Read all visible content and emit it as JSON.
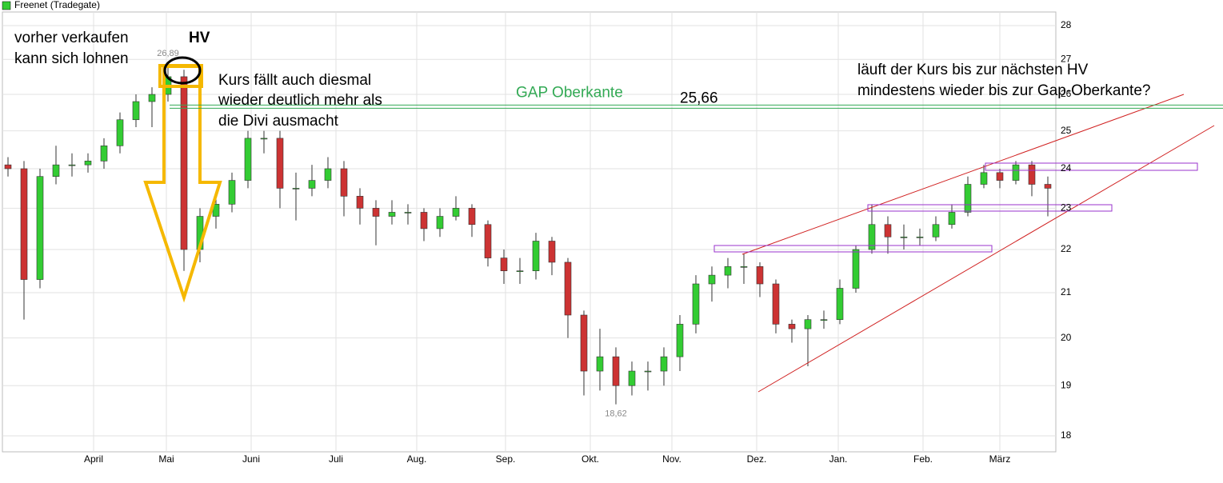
{
  "chart_data": {
    "type": "candlestick",
    "log_y": true,
    "grid": true,
    "series": [
      {
        "name": "Freenet (Tradegate)",
        "color": "#33cc33",
        "color_down": "#cc3333",
        "open": [
          24.1,
          24.0,
          21.3,
          23.8,
          24.1,
          24.1,
          24.2,
          24.6,
          25.3,
          25.8,
          26.0,
          26.5,
          22.0,
          22.8,
          23.1,
          23.7,
          24.8,
          24.8,
          23.5,
          23.5,
          23.7,
          24.0,
          23.3,
          23.0,
          22.8,
          22.9,
          22.9,
          22.5,
          22.8,
          23.0,
          22.6,
          21.8,
          21.5,
          21.5,
          22.2,
          21.7,
          20.5,
          19.3,
          19.6,
          19.0,
          19.3,
          19.3,
          19.6,
          20.3,
          21.2,
          21.4,
          21.6,
          21.6,
          21.2,
          20.3,
          20.2,
          20.4,
          20.4,
          21.1,
          22.0,
          22.6,
          22.3,
          22.3,
          22.3,
          22.6,
          22.9,
          23.6,
          23.9,
          23.7,
          24.1,
          23.6
        ],
        "high": [
          24.3,
          24.2,
          24.0,
          24.6,
          24.4,
          24.4,
          24.8,
          25.5,
          26.0,
          26.2,
          26.89,
          26.7,
          23.0,
          23.4,
          23.9,
          25.0,
          25.0,
          25.0,
          23.9,
          24.1,
          24.3,
          24.2,
          23.5,
          23.2,
          23.2,
          23.1,
          23.0,
          23.0,
          23.3,
          23.1,
          22.7,
          22.0,
          21.8,
          22.4,
          22.3,
          21.8,
          20.6,
          20.2,
          19.8,
          19.5,
          19.5,
          19.8,
          20.5,
          21.4,
          21.6,
          21.8,
          21.9,
          21.7,
          21.3,
          20.4,
          20.5,
          20.6,
          21.3,
          22.1,
          23.1,
          22.8,
          22.6,
          22.5,
          22.8,
          23.1,
          23.8,
          24.1,
          24.0,
          24.2,
          24.2,
          23.8
        ],
        "low": [
          23.8,
          20.4,
          21.1,
          23.6,
          23.8,
          23.9,
          24.0,
          24.4,
          25.1,
          25.1,
          25.8,
          21.5,
          21.7,
          22.5,
          22.9,
          23.5,
          24.4,
          23.0,
          22.7,
          23.3,
          23.5,
          22.8,
          22.6,
          22.1,
          22.6,
          22.6,
          22.2,
          22.3,
          22.7,
          22.3,
          21.6,
          21.2,
          21.2,
          21.3,
          21.4,
          20.0,
          18.8,
          18.9,
          18.62,
          18.8,
          18.9,
          19.0,
          19.3,
          20.1,
          20.8,
          21.1,
          21.2,
          20.9,
          20.1,
          19.9,
          19.4,
          20.2,
          20.3,
          21.0,
          21.9,
          21.9,
          22.0,
          22.1,
          22.2,
          22.5,
          22.8,
          23.5,
          23.5,
          23.6,
          23.3,
          22.8
        ],
        "close": [
          24.0,
          21.3,
          23.8,
          24.1,
          24.1,
          24.2,
          24.6,
          25.3,
          25.8,
          26.0,
          26.5,
          22.0,
          22.8,
          23.1,
          23.7,
          24.8,
          24.8,
          23.5,
          23.5,
          23.7,
          24.0,
          23.3,
          23.0,
          22.8,
          22.9,
          22.9,
          22.5,
          22.8,
          23.0,
          22.6,
          21.8,
          21.5,
          21.5,
          22.2,
          21.7,
          20.5,
          19.3,
          19.6,
          19.0,
          19.3,
          19.3,
          19.6,
          20.3,
          21.2,
          21.4,
          21.6,
          21.6,
          21.2,
          20.3,
          20.2,
          20.4,
          20.4,
          21.1,
          22.0,
          22.6,
          22.3,
          22.3,
          22.3,
          22.6,
          22.9,
          23.6,
          23.9,
          23.7,
          24.1,
          23.6,
          23.5
        ]
      }
    ],
    "ylim": [
      18,
      28
    ],
    "yticks": [
      18,
      19,
      20,
      21,
      22,
      23,
      24,
      25,
      26,
      27,
      28
    ],
    "xticks": [
      {
        "value": 5.35,
        "label": "April"
      },
      {
        "value": 9.9,
        "label": "Mai"
      },
      {
        "value": 15.2,
        "label": "Juni"
      },
      {
        "value": 20.5,
        "label": "Juli"
      },
      {
        "value": 25.55,
        "label": "Aug."
      },
      {
        "value": 31.1,
        "label": "Sep."
      },
      {
        "value": 36.4,
        "label": "Okt."
      },
      {
        "value": 41.5,
        "label": "Nov."
      },
      {
        "value": 46.8,
        "label": "Dez."
      },
      {
        "value": 51.9,
        "label": "Jan."
      },
      {
        "value": 57.2,
        "label": "Feb."
      },
      {
        "value": 62,
        "label": "März"
      }
    ],
    "extremes": [
      {
        "index": 10,
        "value": 26.89,
        "label": "26,89"
      },
      {
        "index": 38,
        "value": 18.62,
        "label": "18,62"
      }
    ],
    "gap": {
      "label": "GAP Oberkante",
      "value": 25.66,
      "value_label": "25,66",
      "color": "#33aa55"
    },
    "notes": {
      "sell": [
        "vorher verkaufen",
        "kann sich lohnen"
      ],
      "hv": "HV",
      "drop": [
        "Kurs fällt auch diesmal",
        "wieder deutlich mehr  als",
        "die Divi ausmacht"
      ],
      "question": [
        "läuft der Kurs bis zur nächsten HV",
        "mindestens wieder bis zur Gap-Oberkante?"
      ]
    }
  }
}
